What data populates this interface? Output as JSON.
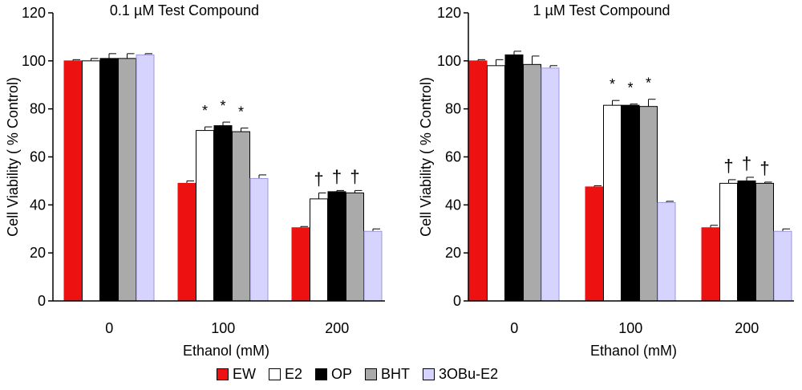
{
  "chart_data": [
    {
      "type": "bar",
      "title": "0.1 µM Test Compound",
      "xlabel": "Ethanol (mM)",
      "ylabel": "Cell Viability ( % Control)",
      "ylim": [
        0,
        120
      ],
      "yticks": [
        0,
        20,
        40,
        60,
        80,
        100,
        120
      ],
      "categories": [
        "0",
        "100",
        "200"
      ],
      "series": [
        {
          "name": "EW",
          "values": [
            100,
            49,
            30.5
          ],
          "errors": [
            0.5,
            1,
            0.5
          ]
        },
        {
          "name": "E2",
          "values": [
            100,
            71,
            42.5
          ],
          "errors": [
            1,
            1.5,
            2.5
          ]
        },
        {
          "name": "OP",
          "values": [
            101,
            73,
            45.5
          ],
          "errors": [
            2,
            1.5,
            0.5
          ]
        },
        {
          "name": "BHT",
          "values": [
            101,
            70.5,
            45
          ],
          "errors": [
            2,
            1.5,
            1
          ]
        },
        {
          "name": "3OBu-E2",
          "values": [
            102.5,
            51,
            29
          ],
          "errors": [
            0.5,
            1.5,
            1
          ]
        }
      ],
      "annotations": [
        {
          "category": "100",
          "series": "E2",
          "text": "*"
        },
        {
          "category": "100",
          "series": "OP",
          "text": "*"
        },
        {
          "category": "100",
          "series": "BHT",
          "text": "*"
        },
        {
          "category": "200",
          "series": "E2",
          "text": "†"
        },
        {
          "category": "200",
          "series": "OP",
          "text": "†"
        },
        {
          "category": "200",
          "series": "BHT",
          "text": "†"
        }
      ]
    },
    {
      "type": "bar",
      "title": "1 µM Test Compound",
      "xlabel": "Ethanol (mM)",
      "ylabel": "Cell Viability ( % Control)",
      "ylim": [
        0,
        120
      ],
      "yticks": [
        0,
        20,
        40,
        60,
        80,
        100,
        120
      ],
      "categories": [
        "0",
        "100",
        "200"
      ],
      "series": [
        {
          "name": "EW",
          "values": [
            100,
            47.5,
            30.5
          ],
          "errors": [
            0.5,
            0.5,
            1
          ]
        },
        {
          "name": "E2",
          "values": [
            98,
            81.5,
            49
          ],
          "errors": [
            2.5,
            2,
            1.5
          ]
        },
        {
          "name": "OP",
          "values": [
            102.5,
            81.5,
            50
          ],
          "errors": [
            1.5,
            0.5,
            1.5
          ]
        },
        {
          "name": "BHT",
          "values": [
            98.5,
            81,
            49
          ],
          "errors": [
            3.5,
            3,
            0.5
          ]
        },
        {
          "name": "3OBu-E2",
          "values": [
            97,
            41,
            29
          ],
          "errors": [
            1,
            0.5,
            1
          ]
        }
      ],
      "annotations": [
        {
          "category": "100",
          "series": "E2",
          "text": "*"
        },
        {
          "category": "100",
          "series": "OP",
          "text": "*"
        },
        {
          "category": "100",
          "series": "BHT",
          "text": "*"
        },
        {
          "category": "200",
          "series": "E2",
          "text": "†"
        },
        {
          "category": "200",
          "series": "OP",
          "text": "†"
        },
        {
          "category": "200",
          "series": "BHT",
          "text": "†"
        }
      ]
    }
  ],
  "legend": {
    "items": [
      {
        "label": "EW",
        "color": "#ee1111"
      },
      {
        "label": "E2",
        "color": "#ffffff"
      },
      {
        "label": "OP",
        "color": "#000000"
      },
      {
        "label": "BHT",
        "color": "#aaaaaa"
      },
      {
        "label": "3OBu-E2",
        "color": "#d6d4ff"
      }
    ]
  }
}
